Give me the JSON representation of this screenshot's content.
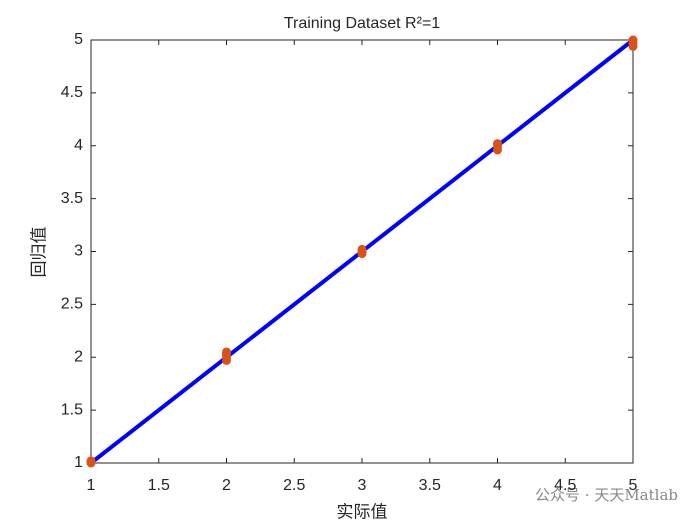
{
  "chart_data": {
    "type": "scatter",
    "title": "Training Dataset  R²=1",
    "xlabel": "实际值",
    "ylabel": "回归值",
    "watermark": "公众号 · 天天Matlab",
    "xlim": [
      1,
      5
    ],
    "ylim": [
      1,
      5
    ],
    "xticks": [
      1,
      1.5,
      2,
      2.5,
      3,
      3.5,
      4,
      4.5,
      5
    ],
    "yticks": [
      1,
      1.5,
      2,
      2.5,
      3,
      3.5,
      4,
      4.5,
      5
    ],
    "grid": false,
    "series": [
      {
        "mode": "line",
        "color": "#0000ff",
        "x": [
          1,
          5
        ],
        "values": [
          1,
          5
        ]
      },
      {
        "mode": "markers",
        "color": "#d95319",
        "x": [
          1,
          1,
          1,
          2,
          2,
          2,
          2,
          3,
          3,
          3,
          4,
          4,
          4,
          5,
          5,
          5
        ],
        "values": [
          1.0,
          1.01,
          1.02,
          1.97,
          2.0,
          2.03,
          2.05,
          2.98,
          3.0,
          3.02,
          3.96,
          3.99,
          4.02,
          4.94,
          4.97,
          5.0
        ]
      }
    ]
  }
}
